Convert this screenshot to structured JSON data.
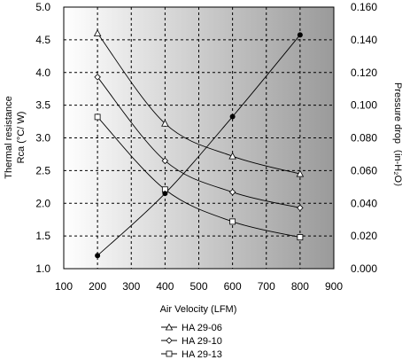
{
  "chart_data": {
    "type": "line",
    "xlabel": "Air Velocity (LFM)",
    "ylabel_left_line1": "Thermal resistance",
    "ylabel_left_line2": "Rca (°C/ W)",
    "ylabel_right": "Pressure drop（in-H₂O）",
    "xlim": [
      100,
      900
    ],
    "ylim_left": [
      1.0,
      5.0
    ],
    "ylim_right": [
      0.0,
      0.16
    ],
    "x_ticks": [
      "100",
      "200",
      "300",
      "400",
      "500",
      "600",
      "700",
      "800",
      "900"
    ],
    "y_ticks_left": [
      "1.0",
      "1.5",
      "2.0",
      "2.5",
      "3.0",
      "3.5",
      "4.0",
      "4.5",
      "5.0"
    ],
    "y_ticks_right": [
      "0.000",
      "0.020",
      "0.040",
      "0.060",
      "0.080",
      "0.100",
      "0.120",
      "0.140",
      "0.160"
    ],
    "grid": true,
    "legend_position": "bottom",
    "background": "gradient white-to-gray",
    "series": [
      {
        "name": "HA 29-06",
        "marker": "triangle",
        "axis": "left",
        "x": [
          200,
          400,
          600,
          800
        ],
        "y": [
          4.6,
          3.22,
          2.72,
          2.45
        ]
      },
      {
        "name": "HA 29-10",
        "marker": "diamond",
        "axis": "left",
        "x": [
          200,
          400,
          600,
          800
        ],
        "y": [
          3.93,
          2.65,
          2.17,
          1.93
        ]
      },
      {
        "name": "HA 29-13",
        "marker": "square",
        "axis": "left",
        "x": [
          200,
          400,
          600,
          800
        ],
        "y": [
          3.32,
          2.21,
          1.72,
          1.48
        ]
      },
      {
        "name": "",
        "marker": "filled-circle",
        "axis": "right",
        "x": [
          200,
          400,
          600,
          800
        ],
        "y": [
          0.008,
          0.046,
          0.093,
          0.143
        ]
      }
    ]
  }
}
